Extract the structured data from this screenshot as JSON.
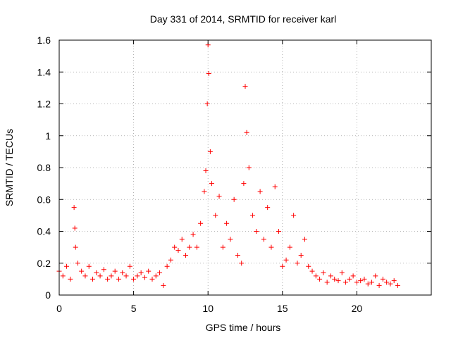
{
  "chart_data": {
    "type": "scatter",
    "title": "Day 331 of 2014, SRMTID for receiver karl",
    "xlabel": "GPS time / hours",
    "ylabel": "SRMTID / TECUs",
    "xlim": [
      0,
      25
    ],
    "ylim": [
      0,
      1.6
    ],
    "xticks": [
      0,
      5,
      10,
      15,
      20
    ],
    "xtick_labels": [
      "0",
      "5",
      "10",
      "15",
      "20"
    ],
    "yticks": [
      0,
      0.2,
      0.4,
      0.6,
      0.8,
      1.0,
      1.2,
      1.4,
      1.6
    ],
    "ytick_labels": [
      "0",
      "0.2",
      "0.4",
      "0.6",
      "0.8",
      "1",
      "1.2",
      "1.4",
      "1.6"
    ],
    "grid": true,
    "marker": "plus",
    "color": "#ff0000",
    "series": [
      {
        "name": "SRMTID",
        "x": [
          0.0,
          0.25,
          0.5,
          0.75,
          1.0,
          1.05,
          1.1,
          1.25,
          1.5,
          1.75,
          2.0,
          2.25,
          2.5,
          2.75,
          3.0,
          3.25,
          3.5,
          3.75,
          4.0,
          4.25,
          4.5,
          4.75,
          5.0,
          5.25,
          5.5,
          5.75,
          6.0,
          6.25,
          6.5,
          6.75,
          7.0,
          7.25,
          7.5,
          7.75,
          8.0,
          8.25,
          8.5,
          8.75,
          9.0,
          9.25,
          9.5,
          9.75,
          9.85,
          9.95,
          10.0,
          10.05,
          10.15,
          10.25,
          10.5,
          10.75,
          11.0,
          11.25,
          11.5,
          11.75,
          12.0,
          12.25,
          12.4,
          12.5,
          12.6,
          12.75,
          13.0,
          13.25,
          13.5,
          13.75,
          14.0,
          14.25,
          14.5,
          14.75,
          15.0,
          15.25,
          15.5,
          15.75,
          16.0,
          16.25,
          16.5,
          16.75,
          17.0,
          17.25,
          17.5,
          17.75,
          18.0,
          18.25,
          18.5,
          18.75,
          19.0,
          19.25,
          19.5,
          19.75,
          20.0,
          20.25,
          20.5,
          20.75,
          21.0,
          21.25,
          21.5,
          21.75,
          22.0,
          22.25,
          22.5,
          22.75
        ],
        "y": [
          0.15,
          0.12,
          0.18,
          0.1,
          0.55,
          0.42,
          0.3,
          0.2,
          0.15,
          0.12,
          0.18,
          0.1,
          0.14,
          0.12,
          0.16,
          0.1,
          0.12,
          0.15,
          0.1,
          0.14,
          0.12,
          0.18,
          0.1,
          0.12,
          0.14,
          0.11,
          0.15,
          0.1,
          0.12,
          0.14,
          0.06,
          0.18,
          0.22,
          0.3,
          0.28,
          0.35,
          0.25,
          0.3,
          0.38,
          0.3,
          0.45,
          0.65,
          0.78,
          1.2,
          1.57,
          1.39,
          0.9,
          0.7,
          0.5,
          0.62,
          0.3,
          0.45,
          0.35,
          0.6,
          0.25,
          0.2,
          0.7,
          1.31,
          1.02,
          0.8,
          0.5,
          0.4,
          0.65,
          0.35,
          0.55,
          0.3,
          0.68,
          0.4,
          0.18,
          0.22,
          0.3,
          0.5,
          0.2,
          0.25,
          0.35,
          0.18,
          0.15,
          0.12,
          0.1,
          0.14,
          0.08,
          0.12,
          0.1,
          0.09,
          0.14,
          0.08,
          0.1,
          0.12,
          0.08,
          0.09,
          0.1,
          0.07,
          0.08,
          0.12,
          0.06,
          0.1,
          0.08,
          0.07,
          0.09,
          0.06
        ]
      }
    ]
  }
}
